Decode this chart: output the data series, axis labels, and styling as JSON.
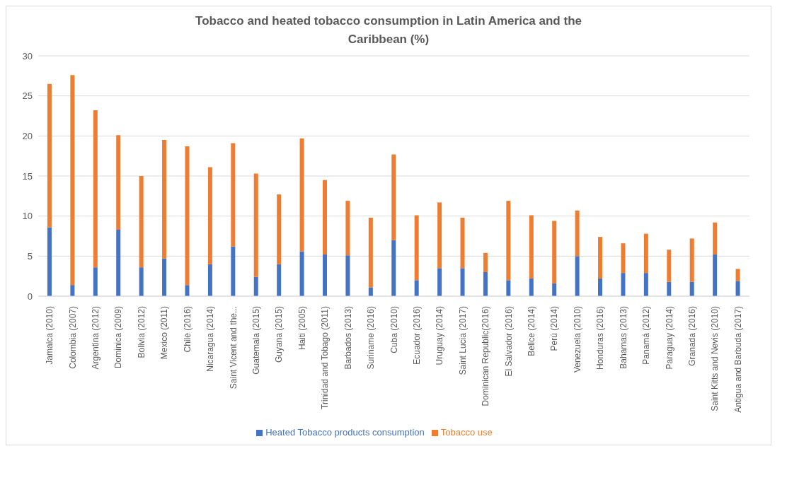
{
  "chart_data": {
    "type": "bar",
    "title": "Tobacco and heated tobacco consumption in Latin America and the Caribbean (%)",
    "stacked": true,
    "grid": "y",
    "legend": "bottom",
    "categories": [
      "Jamaica (2010)",
      "Colombia (2007)",
      "Argentina (2012)",
      "Dominica (2009)",
      "Bolivia (2012)",
      "Mexico (2011)",
      "Chile (2016)",
      "Nicaragua (2014)",
      "Saint Vicent and the...",
      "Guatemala (2015)",
      "Guyana (2015)",
      "Haiti (2005)",
      "Trinidad and Tobago (2011)",
      "Barbados (2013)",
      "Suriname (2016)",
      "Cuba (2010)",
      "Ecuador (2016)",
      "Uruguay (2014)",
      "Saint Lucia (2017)",
      "Dominican Republic(2016)",
      "El Salvador (2016)",
      "Belice (2014)",
      "Perú (2014)",
      "Venezuela (2010)",
      "Honduras (2016)",
      "Bahamas (2013)",
      "Panamá (2012)",
      "Paraguay (2014)",
      "Granada (2016)",
      "Saint Kitts and Nevis (2010)",
      "Antigua and Barbuda (2017)"
    ],
    "series": [
      {
        "name": "Heated Tobacco products consumption",
        "color": "#4472c4",
        "values": [
          8.6,
          1.4,
          3.6,
          8.3,
          3.6,
          4.7,
          1.4,
          4.0,
          6.2,
          2.4,
          4.0,
          5.6,
          5.2,
          5.1,
          1.1,
          7.0,
          2.0,
          3.5,
          3.5,
          3.0,
          2.0,
          2.2,
          1.6,
          5.0,
          2.2,
          2.9,
          2.9,
          1.8,
          1.8,
          5.2,
          1.9
        ]
      },
      {
        "name": "Tobacco use",
        "color": "#ed7d31",
        "values": [
          17.9,
          26.2,
          19.6,
          11.8,
          11.4,
          14.8,
          17.3,
          12.1,
          12.9,
          12.9,
          8.7,
          14.1,
          9.3,
          6.8,
          8.7,
          10.7,
          8.1,
          8.2,
          6.3,
          2.4,
          9.9,
          7.9,
          7.8,
          5.7,
          5.2,
          3.7,
          4.9,
          4.0,
          5.4,
          4.0,
          1.5
        ]
      }
    ],
    "ylim": [
      0,
      30
    ],
    "yticks": [
      0,
      5,
      10,
      15,
      20,
      25,
      30
    ]
  }
}
